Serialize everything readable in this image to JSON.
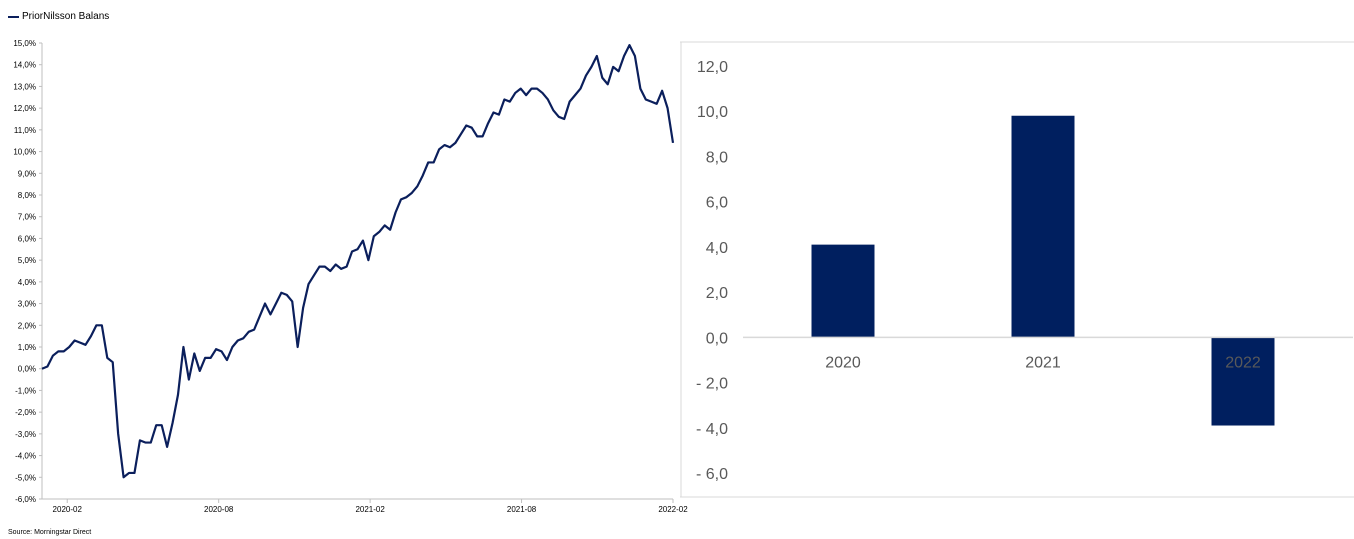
{
  "legend": {
    "label": "PriorNilsson Balans",
    "color": "#0b1f5c"
  },
  "source": "Source: Morningstar Direct",
  "chart_data": [
    {
      "type": "line",
      "series": [
        {
          "name": "PriorNilsson Balans",
          "color": "#0b1f5c",
          "values": [
            0.0,
            0.1,
            0.6,
            0.8,
            0.8,
            1.0,
            1.3,
            1.2,
            1.1,
            1.5,
            2.0,
            2.0,
            0.5,
            0.3,
            -3.0,
            -5.0,
            -4.8,
            -4.8,
            -3.3,
            -3.4,
            -3.4,
            -2.6,
            -2.6,
            -3.6,
            -2.5,
            -1.2,
            1.0,
            -0.5,
            0.7,
            -0.1,
            0.5,
            0.5,
            0.9,
            0.8,
            0.4,
            1.0,
            1.3,
            1.4,
            1.7,
            1.8,
            2.4,
            3.0,
            2.5,
            3.0,
            3.5,
            3.4,
            3.1,
            1.0,
            2.8,
            3.9,
            4.3,
            4.7,
            4.7,
            4.5,
            4.8,
            4.6,
            4.7,
            5.4,
            5.5,
            5.9,
            5.0,
            6.1,
            6.3,
            6.6,
            6.4,
            7.2,
            7.8,
            7.9,
            8.1,
            8.4,
            8.9,
            9.5,
            9.5,
            10.1,
            10.3,
            10.2,
            10.4,
            10.8,
            11.2,
            11.1,
            10.7,
            10.7,
            11.3,
            11.8,
            11.7,
            12.4,
            12.3,
            12.7,
            12.9,
            12.6,
            12.9,
            12.9,
            12.7,
            12.4,
            11.9,
            11.6,
            11.5,
            12.3,
            12.6,
            12.9,
            13.5,
            13.9,
            14.4,
            13.4,
            13.1,
            13.9,
            13.7,
            14.4,
            14.9,
            14.4,
            12.9,
            12.4,
            12.3,
            12.2,
            12.8,
            12.0,
            10.4
          ]
        }
      ],
      "x_range": [
        "2020-01",
        "2022-02"
      ],
      "x_ticks": [
        "2020-02",
        "2020-08",
        "2021-02",
        "2021-08",
        "2022-02"
      ],
      "ylim": [
        -6,
        15
      ],
      "y_ticks": [
        "-6,0%",
        "-5,0%",
        "-4,0%",
        "-3,0%",
        "-2,0%",
        "-1,0%",
        "0,0%",
        "1,0%",
        "2,0%",
        "3,0%",
        "4,0%",
        "5,0%",
        "6,0%",
        "7,0%",
        "8,0%",
        "9,0%",
        "10,0%",
        "11,0%",
        "12,0%",
        "13,0%",
        "14,0%",
        "15,0%"
      ],
      "grid": false,
      "legend": "top-left"
    },
    {
      "type": "bar",
      "categories": [
        "2020",
        "2021",
        "2022"
      ],
      "values": [
        4.1,
        9.8,
        -3.9
      ],
      "color": "#001f5f",
      "ylim": [
        -6,
        12
      ],
      "y_ticks": [
        "- 6,0",
        "- 4,0",
        "- 2,0",
        "0,0",
        "2,0",
        "4,0",
        "6,0",
        "8,0",
        "10,0",
        "12,0"
      ],
      "grid": false
    }
  ]
}
